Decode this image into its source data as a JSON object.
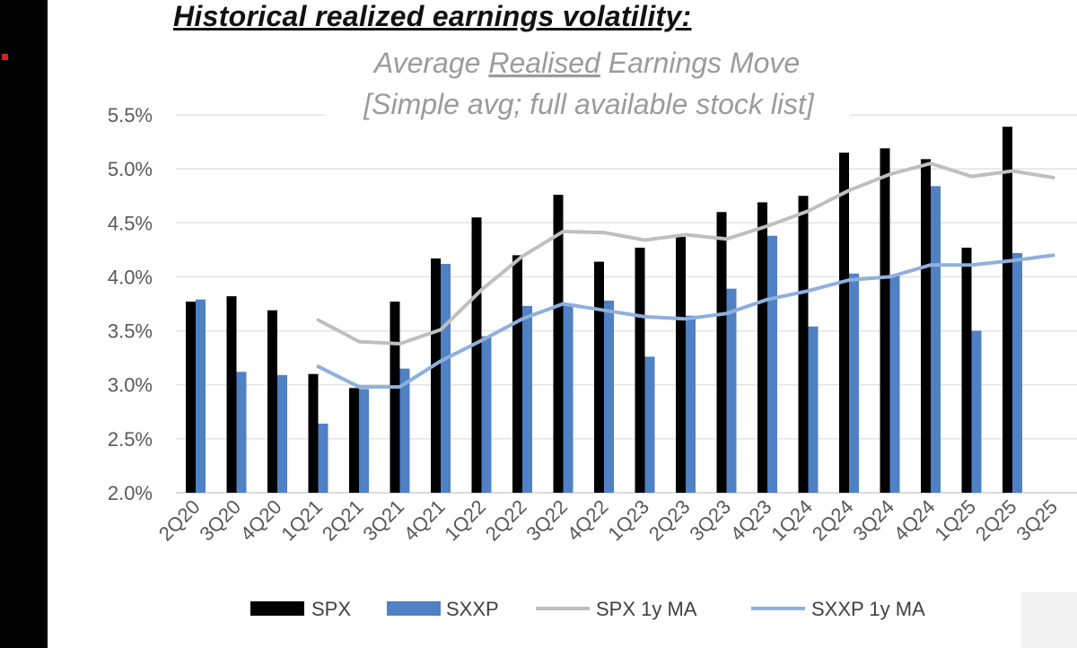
{
  "heading": "Historical realized earnings volatility:",
  "chart_data": {
    "type": "bar",
    "title_line1_pre": "Average ",
    "title_line1_underlined": "Realised",
    "title_line1_post": " Earnings Move",
    "title_line2": "[Simple avg; full available stock list]",
    "categories": [
      "2Q20",
      "3Q20",
      "4Q20",
      "1Q21",
      "2Q21",
      "3Q21",
      "4Q21",
      "1Q22",
      "2Q22",
      "3Q22",
      "4Q22",
      "1Q23",
      "2Q23",
      "3Q23",
      "4Q23",
      "1Q24",
      "2Q24",
      "3Q24",
      "4Q24",
      "1Q25",
      "2Q25",
      "3Q25"
    ],
    "ylim": [
      2.0,
      5.5
    ],
    "yticks": [
      2.0,
      2.5,
      3.0,
      3.5,
      4.0,
      4.5,
      5.0,
      5.5
    ],
    "ytick_labels": [
      "2.0%",
      "2.5%",
      "3.0%",
      "3.5%",
      "4.0%",
      "4.5%",
      "5.0%",
      "5.5%"
    ],
    "grid": true,
    "legend_position": "bottom",
    "series": [
      {
        "name": "SPX",
        "kind": "bar",
        "color": "#000000",
        "values": [
          3.77,
          3.82,
          3.69,
          3.1,
          2.97,
          3.77,
          4.17,
          4.55,
          4.2,
          4.76,
          4.14,
          4.27,
          4.37,
          4.6,
          4.69,
          4.75,
          5.15,
          5.19,
          5.09,
          4.27,
          5.39,
          null
        ]
      },
      {
        "name": "SXXP",
        "kind": "bar",
        "color": "#4f81c4",
        "values": [
          3.79,
          3.12,
          3.09,
          2.64,
          2.96,
          3.15,
          4.12,
          3.45,
          3.73,
          3.74,
          3.78,
          3.26,
          3.64,
          3.89,
          4.38,
          3.54,
          4.03,
          4.01,
          4.84,
          3.5,
          4.22,
          null
        ]
      },
      {
        "name": "SPX 1y MA",
        "kind": "line",
        "color": "#bfbfbf",
        "values": [
          null,
          null,
          null,
          3.6,
          3.4,
          3.38,
          3.51,
          3.88,
          4.19,
          4.42,
          4.41,
          4.34,
          4.39,
          4.35,
          4.47,
          4.61,
          4.8,
          4.95,
          5.05,
          4.93,
          4.98,
          4.92
        ]
      },
      {
        "name": "SXXP 1y MA",
        "kind": "line",
        "color": "#8fb0dd",
        "values": [
          null,
          null,
          null,
          3.17,
          2.98,
          2.98,
          3.22,
          3.41,
          3.61,
          3.75,
          3.69,
          3.63,
          3.61,
          3.66,
          3.79,
          3.87,
          3.97,
          4.0,
          4.11,
          4.11,
          4.15,
          4.2
        ]
      }
    ]
  }
}
